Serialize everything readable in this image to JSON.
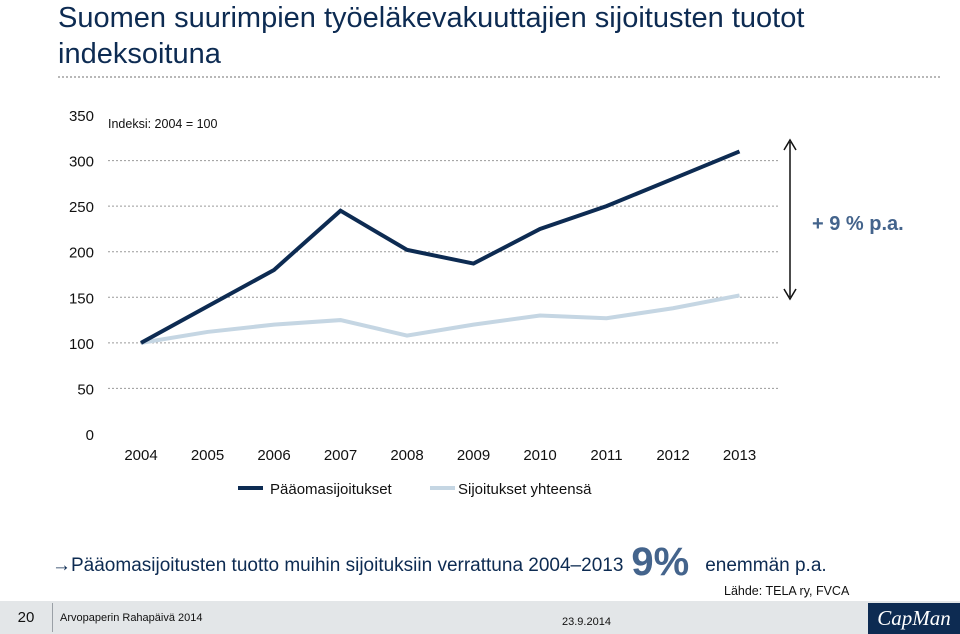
{
  "slide": {
    "title": "Suomen suurimpien työeläkevakuuttajien sijoitusten tuotot indeksoituna"
  },
  "chart_data": {
    "type": "line",
    "title": "",
    "annotation": "Indeksi: 2004 = 100",
    "categories": [
      "2004",
      "2005",
      "2006",
      "2007",
      "2008",
      "2009",
      "2010",
      "2011",
      "2012",
      "2013"
    ],
    "y_ticks": [
      "0",
      "50",
      "100",
      "150",
      "200",
      "250",
      "300",
      "350"
    ],
    "ylim": [
      0,
      350
    ],
    "grid": true,
    "legend_position": "bottom",
    "series": [
      {
        "name": "Pääomasijoitukset",
        "color": "#0d2b52",
        "values": [
          100,
          140,
          180,
          245,
          202,
          187,
          225,
          250,
          280,
          310
        ]
      },
      {
        "name": "Sijoitukset yhteensä",
        "color": "#c5d6e3",
        "values": [
          100,
          112,
          120,
          125,
          108,
          120,
          130,
          127,
          138,
          152
        ]
      }
    ],
    "side_annotation": "+ 9 % p.a."
  },
  "note": {
    "text_before": "Pääomasijoitusten tuotto muihin sijoituksiin verrattuna 2004–2013",
    "highlight": "9%",
    "text_after": "enemmän p.a."
  },
  "source": "Lähde: TELA ry, FVCA",
  "footer": {
    "page_number": "20",
    "event": "Arvopaperin Rahapäivä 2014",
    "date": "23.9.2014",
    "logo": "CapMan"
  }
}
